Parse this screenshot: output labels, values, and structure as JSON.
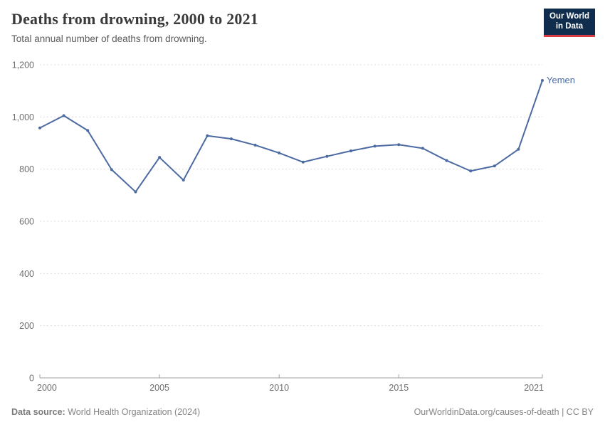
{
  "header": {
    "title": "Deaths from drowning, 2000 to 2021",
    "subtitle": "Total annual number of deaths from drowning."
  },
  "logo": {
    "line1": "Our World",
    "line2": "in Data"
  },
  "footer": {
    "source_label": "Data source:",
    "source_value": "World Health Organization (2024)",
    "link": "OurWorldinData.org/causes-of-death | CC BY"
  },
  "chart_data": {
    "type": "line",
    "title": "Deaths from drowning, 2000 to 2021",
    "xlabel": "",
    "ylabel": "",
    "x": [
      2000,
      2001,
      2002,
      2003,
      2004,
      2005,
      2006,
      2007,
      2008,
      2009,
      2010,
      2011,
      2012,
      2013,
      2014,
      2015,
      2016,
      2017,
      2018,
      2019,
      2020,
      2021
    ],
    "series": [
      {
        "name": "Yemen",
        "values": [
          958,
          1005,
          948,
          798,
          713,
          845,
          758,
          928,
          916,
          892,
          862,
          827,
          849,
          870,
          888,
          894,
          880,
          833,
          793,
          812,
          876,
          1140
        ]
      }
    ],
    "ylim": [
      0,
      1200
    ],
    "yticks": [
      {
        "value": 0,
        "label": "0"
      },
      {
        "value": 200,
        "label": "200"
      },
      {
        "value": 400,
        "label": "400"
      },
      {
        "value": 600,
        "label": "600"
      },
      {
        "value": 800,
        "label": "800"
      },
      {
        "value": 1000,
        "label": "1,000"
      },
      {
        "value": 1200,
        "label": "1,200"
      }
    ],
    "xticks": [
      2000,
      2005,
      2010,
      2015,
      2021
    ],
    "grid": "horizontal-dashed",
    "legend_position": "end-of-line-label",
    "line_color": "#4c6aa2",
    "axis_color": "#a1a1a1",
    "gridline_color": "#dcdcdc",
    "tick_label_color": "#6e6e6e"
  }
}
